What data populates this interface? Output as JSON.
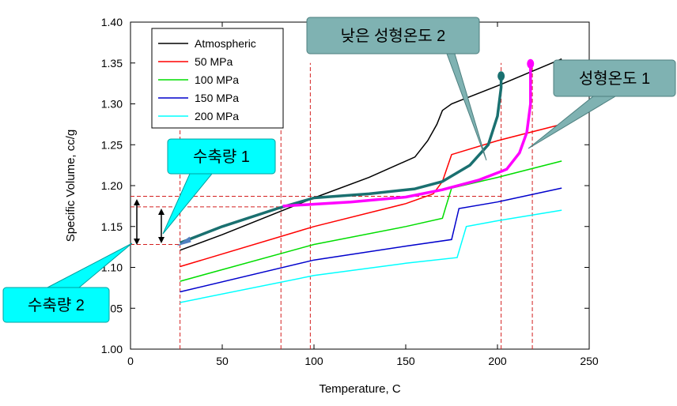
{
  "chart_data": {
    "type": "line",
    "xlabel": "Temperature, C",
    "ylabel": "Specific Volume, cc/g",
    "xlim": [
      0,
      250
    ],
    "ylim": [
      1.0,
      1.4
    ],
    "xticks": [
      0,
      50,
      100,
      150,
      200,
      250
    ],
    "yticks": [
      1.0,
      1.05,
      1.1,
      1.15,
      1.2,
      1.25,
      1.3,
      1.35,
      1.4
    ],
    "xtick_labels": [
      "0",
      "50",
      "100",
      "150",
      "200",
      "250"
    ],
    "ytick_labels": [
      "1.00",
      "1.05",
      "1.10",
      "1.15",
      "1.20",
      "1.25",
      "1.30",
      "1.35",
      "1.40"
    ],
    "grid": false,
    "legend_position": "top-left",
    "series": [
      {
        "name": "Atmospheric",
        "color": "#000000",
        "x": [
          27,
          50,
          100,
          130,
          155,
          162,
          167,
          170,
          175,
          200,
          235
        ],
        "y": [
          1.121,
          1.14,
          1.185,
          1.21,
          1.235,
          1.255,
          1.275,
          1.292,
          1.3,
          1.322,
          1.355
        ]
      },
      {
        "name": "50 MPa",
        "color": "#ff0000",
        "x": [
          27,
          100,
          150,
          165,
          170,
          175,
          200,
          235
        ],
        "y": [
          1.101,
          1.15,
          1.178,
          1.19,
          1.205,
          1.238,
          1.255,
          1.275
        ]
      },
      {
        "name": "100 MPa",
        "color": "#00dd00",
        "x": [
          27,
          100,
          150,
          170,
          172,
          175,
          200,
          235
        ],
        "y": [
          1.083,
          1.128,
          1.15,
          1.16,
          1.175,
          1.197,
          1.21,
          1.23
        ]
      },
      {
        "name": "150 MPa",
        "color": "#0000cc",
        "x": [
          27,
          100,
          150,
          175,
          179,
          200,
          235
        ],
        "y": [
          1.07,
          1.109,
          1.126,
          1.134,
          1.172,
          1.18,
          1.197
        ]
      },
      {
        "name": "200 MPa",
        "color": "#00ffff",
        "x": [
          27,
          100,
          150,
          178,
          183,
          200,
          235
        ],
        "y": [
          1.057,
          1.09,
          1.105,
          1.112,
          1.15,
          1.157,
          1.17
        ]
      }
    ],
    "process_paths": [
      {
        "id": "low-temp-path",
        "color": "#1a7070",
        "x": [
          27,
          50,
          80,
          100,
          130,
          155,
          170,
          185,
          195,
          200,
          202,
          202
        ],
        "y": [
          1.13,
          1.15,
          1.172,
          1.185,
          1.19,
          1.196,
          1.205,
          1.225,
          1.25,
          1.285,
          1.32,
          1.334
        ]
      },
      {
        "id": "mold-temp-path",
        "color": "#ff00ff",
        "x": [
          83,
          120,
          150,
          170,
          190,
          205,
          212,
          216,
          218,
          218,
          218
        ],
        "y": [
          1.175,
          1.18,
          1.186,
          1.195,
          1.207,
          1.22,
          1.24,
          1.265,
          1.3,
          1.33,
          1.349
        ]
      }
    ],
    "reference_lines": {
      "vertical_x": [
        27,
        82,
        98,
        202,
        219
      ],
      "horizontal_y": [
        1.128,
        1.174,
        1.187
      ]
    },
    "annotations": [
      {
        "id": "low-mold-temp-2",
        "text": "낮은 성형온도 2"
      },
      {
        "id": "mold-temp-1",
        "text": "성형온도 1"
      },
      {
        "id": "shrinkage-1",
        "text": "수축량 1"
      },
      {
        "id": "shrinkage-2",
        "text": "수축량 2"
      }
    ]
  },
  "colors": {
    "callout_cyan": "#00ffff",
    "callout_gray": "#7fb2b2",
    "ref_line": "#d42020"
  }
}
